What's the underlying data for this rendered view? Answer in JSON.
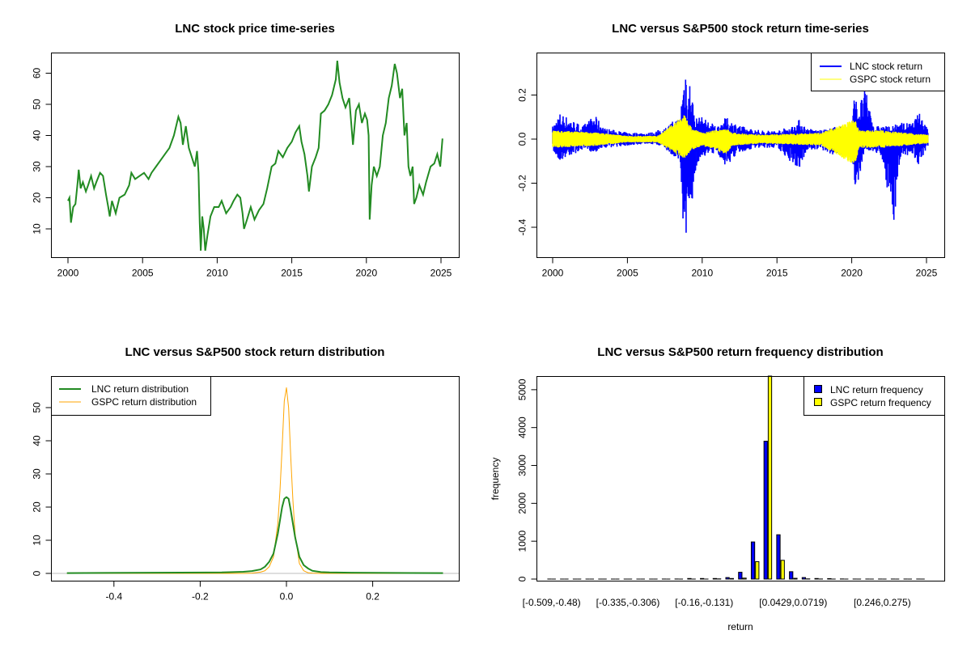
{
  "chart_data": [
    {
      "type": "line",
      "title": "LNC stock price time-series",
      "xlabel": "",
      "ylabel": "",
      "x_ticks": [
        2000,
        2005,
        2010,
        2015,
        2020,
        2025
      ],
      "y_ticks": [
        10,
        20,
        30,
        40,
        50,
        60
      ],
      "color": "#228B22",
      "series": [
        {
          "name": "LNC price",
          "points": [
            [
              2000.0,
              19
            ],
            [
              2000.1,
              20
            ],
            [
              2000.2,
              12
            ],
            [
              2000.35,
              17
            ],
            [
              2000.5,
              18
            ],
            [
              2000.65,
              25
            ],
            [
              2000.72,
              29
            ],
            [
              2000.85,
              23
            ],
            [
              2001.0,
              25
            ],
            [
              2001.2,
              22
            ],
            [
              2001.35,
              24
            ],
            [
              2001.55,
              27
            ],
            [
              2001.75,
              23
            ],
            [
              2001.9,
              25
            ],
            [
              2002.15,
              28
            ],
            [
              2002.35,
              27
            ],
            [
              2002.55,
              21
            ],
            [
              2002.7,
              17
            ],
            [
              2002.8,
              14
            ],
            [
              2002.95,
              19
            ],
            [
              2003.2,
              15
            ],
            [
              2003.45,
              20
            ],
            [
              2003.8,
              21
            ],
            [
              2004.1,
              24
            ],
            [
              2004.25,
              28
            ],
            [
              2004.5,
              26
            ],
            [
              2004.8,
              27
            ],
            [
              2005.1,
              28
            ],
            [
              2005.4,
              26
            ],
            [
              2005.6,
              28
            ],
            [
              2005.9,
              30
            ],
            [
              2006.2,
              32
            ],
            [
              2006.5,
              34
            ],
            [
              2006.8,
              36
            ],
            [
              2007.1,
              40
            ],
            [
              2007.4,
              46
            ],
            [
              2007.55,
              44
            ],
            [
              2007.7,
              37
            ],
            [
              2007.9,
              43
            ],
            [
              2008.1,
              36
            ],
            [
              2008.3,
              33
            ],
            [
              2008.5,
              30
            ],
            [
              2008.65,
              35
            ],
            [
              2008.75,
              28
            ],
            [
              2008.83,
              12
            ],
            [
              2008.9,
              3
            ],
            [
              2009.0,
              14
            ],
            [
              2009.1,
              10
            ],
            [
              2009.2,
              3
            ],
            [
              2009.35,
              8
            ],
            [
              2009.55,
              14
            ],
            [
              2009.8,
              17
            ],
            [
              2010.1,
              17
            ],
            [
              2010.3,
              19
            ],
            [
              2010.6,
              15
            ],
            [
              2010.9,
              17
            ],
            [
              2011.1,
              19
            ],
            [
              2011.35,
              21
            ],
            [
              2011.55,
              20
            ],
            [
              2011.7,
              15
            ],
            [
              2011.8,
              10
            ],
            [
              2012.0,
              13
            ],
            [
              2012.25,
              17
            ],
            [
              2012.5,
              13
            ],
            [
              2012.8,
              16
            ],
            [
              2013.1,
              18
            ],
            [
              2013.35,
              23
            ],
            [
              2013.65,
              30
            ],
            [
              2013.9,
              31
            ],
            [
              2014.1,
              35
            ],
            [
              2014.4,
              33
            ],
            [
              2014.7,
              36
            ],
            [
              2015.0,
              38
            ],
            [
              2015.25,
              41
            ],
            [
              2015.5,
              43
            ],
            [
              2015.65,
              38
            ],
            [
              2015.85,
              34
            ],
            [
              2016.05,
              27
            ],
            [
              2016.15,
              22
            ],
            [
              2016.35,
              30
            ],
            [
              2016.6,
              33
            ],
            [
              2016.8,
              36
            ],
            [
              2016.95,
              47
            ],
            [
              2017.2,
              48
            ],
            [
              2017.45,
              50
            ],
            [
              2017.7,
              53
            ],
            [
              2017.95,
              58
            ],
            [
              2018.05,
              64
            ],
            [
              2018.2,
              57
            ],
            [
              2018.4,
              52
            ],
            [
              2018.6,
              49
            ],
            [
              2018.85,
              52
            ],
            [
              2019.0,
              43
            ],
            [
              2019.1,
              37
            ],
            [
              2019.3,
              48
            ],
            [
              2019.5,
              50
            ],
            [
              2019.7,
              44
            ],
            [
              2019.9,
              47
            ],
            [
              2020.05,
              45
            ],
            [
              2020.15,
              40
            ],
            [
              2020.22,
              13
            ],
            [
              2020.35,
              24
            ],
            [
              2020.5,
              30
            ],
            [
              2020.7,
              27
            ],
            [
              2020.9,
              30
            ],
            [
              2021.1,
              40
            ],
            [
              2021.3,
              44
            ],
            [
              2021.5,
              52
            ],
            [
              2021.7,
              56
            ],
            [
              2021.9,
              63
            ],
            [
              2022.05,
              60
            ],
            [
              2022.25,
              52
            ],
            [
              2022.4,
              55
            ],
            [
              2022.55,
              40
            ],
            [
              2022.7,
              44
            ],
            [
              2022.82,
              30
            ],
            [
              2022.95,
              27
            ],
            [
              2023.1,
              30
            ],
            [
              2023.2,
              18
            ],
            [
              2023.35,
              20
            ],
            [
              2023.55,
              24
            ],
            [
              2023.8,
              21
            ],
            [
              2024.0,
              25
            ],
            [
              2024.3,
              30
            ],
            [
              2024.55,
              31
            ],
            [
              2024.75,
              34
            ],
            [
              2024.95,
              30
            ],
            [
              2025.1,
              39
            ]
          ]
        }
      ]
    },
    {
      "type": "line",
      "title": "LNC versus S&P500 stock return time-series",
      "x_ticks": [
        2000,
        2005,
        2010,
        2015,
        2020,
        2025
      ],
      "y_ticks": [
        0.2,
        0.0,
        -0.2,
        -0.4
      ],
      "y_tick_labels": [
        "0.2",
        "0.0",
        "-0.2",
        "-0.4"
      ],
      "legend": {
        "position": "top-right",
        "entries": [
          {
            "label": "LNC stock return",
            "color": "#0000FF"
          },
          {
            "label": "GSPC stock return",
            "color": "#FFFF00"
          }
        ]
      },
      "series": [
        {
          "name": "LNC stock return",
          "color": "#0000FF",
          "envelope_year_min_max": [
            [
              2000,
              -0.06,
              0.06
            ],
            [
              2000.5,
              -0.1,
              0.12
            ],
            [
              2001,
              -0.08,
              0.1
            ],
            [
              2002,
              -0.05,
              0.06
            ],
            [
              2002.8,
              -0.06,
              0.11
            ],
            [
              2003.5,
              -0.04,
              0.05
            ],
            [
              2005,
              -0.03,
              0.03
            ],
            [
              2006.5,
              -0.02,
              0.03
            ],
            [
              2007.5,
              -0.04,
              0.05
            ],
            [
              2008.0,
              -0.08,
              0.08
            ],
            [
              2008.5,
              -0.1,
              0.1
            ],
            [
              2008.75,
              -0.42,
              0.27
            ],
            [
              2008.9,
              -0.5,
              0.36
            ],
            [
              2009.0,
              -0.35,
              0.2
            ],
            [
              2009.2,
              -0.48,
              0.28
            ],
            [
              2009.5,
              -0.15,
              0.1
            ],
            [
              2010,
              -0.08,
              0.1
            ],
            [
              2011,
              -0.06,
              0.06
            ],
            [
              2011.6,
              -0.13,
              0.1
            ],
            [
              2012,
              -0.09,
              0.08
            ],
            [
              2013,
              -0.05,
              0.05
            ],
            [
              2014,
              -0.04,
              0.04
            ],
            [
              2015,
              -0.04,
              0.04
            ],
            [
              2016,
              -0.11,
              0.06
            ],
            [
              2016.5,
              -0.14,
              0.09
            ],
            [
              2017,
              -0.05,
              0.05
            ],
            [
              2018,
              -0.05,
              0.04
            ],
            [
              2019,
              -0.08,
              0.06
            ],
            [
              2020.0,
              -0.05,
              0.05
            ],
            [
              2020.2,
              -0.31,
              0.22
            ],
            [
              2020.4,
              -0.2,
              0.14
            ],
            [
              2020.9,
              -0.05,
              0.23
            ],
            [
              2021.5,
              -0.06,
              0.06
            ],
            [
              2022,
              -0.08,
              0.06
            ],
            [
              2022.8,
              -0.4,
              0.06
            ],
            [
              2023.2,
              -0.1,
              0.08
            ],
            [
              2024,
              -0.06,
              0.07
            ],
            [
              2024.5,
              -0.12,
              0.12
            ],
            [
              2025.1,
              -0.04,
              0.06
            ]
          ]
        },
        {
          "name": "GSPC stock return",
          "color": "#FFFF00",
          "envelope_year_min_max": [
            [
              2000,
              -0.04,
              0.04
            ],
            [
              2003,
              -0.03,
              0.03
            ],
            [
              2005,
              -0.015,
              0.015
            ],
            [
              2007,
              -0.015,
              0.015
            ],
            [
              2008.8,
              -0.09,
              0.11
            ],
            [
              2009.3,
              -0.05,
              0.05
            ],
            [
              2010,
              -0.03,
              0.03
            ],
            [
              2011.6,
              -0.07,
              0.05
            ],
            [
              2012,
              -0.03,
              0.03
            ],
            [
              2014,
              -0.02,
              0.02
            ],
            [
              2018,
              -0.03,
              0.03
            ],
            [
              2020.2,
              -0.12,
              0.09
            ],
            [
              2020.5,
              -0.04,
              0.04
            ],
            [
              2022,
              -0.04,
              0.04
            ],
            [
              2025.1,
              -0.02,
              0.02
            ]
          ]
        }
      ]
    },
    {
      "type": "line",
      "title": "LNC versus S&P500 stock return distribution",
      "x_ticks": [
        -0.4,
        -0.2,
        0.0,
        0.2
      ],
      "x_tick_labels": [
        "-0.4",
        "-0.2",
        "0.0",
        "0.2"
      ],
      "y_ticks": [
        0,
        10,
        20,
        30,
        40,
        50
      ],
      "legend": {
        "position": "top-left",
        "entries": [
          {
            "label": "LNC return distribution",
            "color": "#228B22"
          },
          {
            "label": "GSPC return distribution",
            "color": "#FFA500"
          }
        ]
      },
      "x": [
        -0.509,
        -0.15,
        -0.1,
        -0.08,
        -0.06,
        -0.05,
        -0.04,
        -0.03,
        -0.02,
        -0.015,
        -0.01,
        -0.005,
        0,
        0.005,
        0.01,
        0.015,
        0.02,
        0.03,
        0.04,
        0.05,
        0.06,
        0.08,
        0.1,
        0.15,
        0.363
      ],
      "series": [
        {
          "name": "LNC return distribution",
          "color": "#228B22",
          "values": [
            0.1,
            0.3,
            0.5,
            0.7,
            1.2,
            2,
            3.5,
            6,
            12,
            16,
            20,
            22.5,
            23,
            22.5,
            19,
            15,
            11,
            5,
            2.5,
            1.5,
            0.8,
            0.4,
            0.3,
            0.2,
            0.1
          ]
        },
        {
          "name": "GSPC return distribution",
          "color": "#FFA500",
          "values": [
            0,
            0,
            0,
            0.1,
            0.4,
            0.8,
            2,
            5,
            15,
            25,
            38,
            52,
            56,
            50,
            35,
            22,
            12,
            3,
            0.8,
            0.2,
            0.1,
            0,
            0,
            0,
            0
          ]
        }
      ]
    },
    {
      "type": "bar",
      "title": "LNC versus S&P500 return frequency distribution",
      "xlabel": "return",
      "ylabel": "frequency",
      "y_ticks": [
        0,
        1000,
        2000,
        3000,
        4000,
        5000
      ],
      "ylim": [
        0,
        5360
      ],
      "x_tick_labels": [
        {
          "bin": 0,
          "label": "[-0.509,-0.48)"
        },
        {
          "bin": 6,
          "label": "[-0.335,-0.306)"
        },
        {
          "bin": 12,
          "label": "[-0.16,-0.131)"
        },
        {
          "bin": 19,
          "label": "[0.0429,0.0719)"
        },
        {
          "bin": 26,
          "label": "[0.246,0.275)"
        }
      ],
      "legend": {
        "position": "top-right",
        "entries": [
          {
            "label": "LNC return frequency",
            "color": "#0000FF"
          },
          {
            "label": "GSPC return frequency",
            "color": "#FFFF00"
          }
        ]
      },
      "series": [
        {
          "name": "LNC return frequency",
          "color": "#0000FF",
          "values": [
            1,
            0,
            0,
            0,
            0,
            0,
            0,
            0,
            0,
            1,
            2,
            15,
            15,
            15,
            40,
            180,
            980,
            3640,
            1170,
            195,
            40,
            15,
            12,
            3,
            1,
            1,
            1,
            1,
            1,
            1
          ]
        },
        {
          "name": "GSPC return frequency",
          "color": "#FFFF00",
          "values": [
            0,
            0,
            0,
            0,
            0,
            0,
            0,
            0,
            0,
            0,
            0,
            0,
            0,
            5,
            15,
            25,
            460,
            5360,
            495,
            20,
            5,
            2,
            0,
            0,
            0,
            0,
            0,
            0,
            0,
            0
          ]
        }
      ]
    }
  ]
}
